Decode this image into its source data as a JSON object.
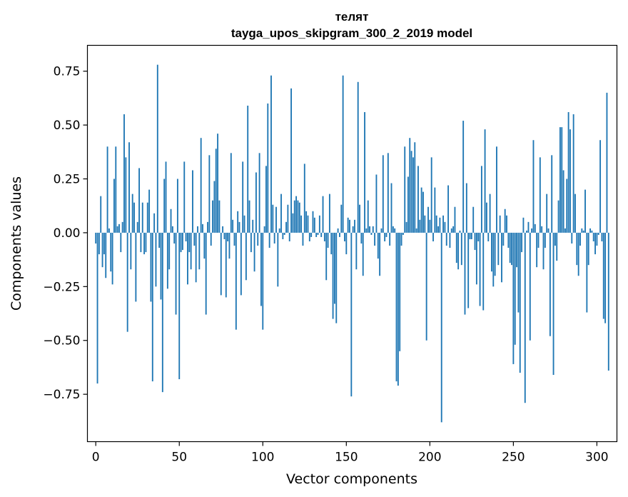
{
  "chart_data": {
    "type": "bar",
    "title": "телят",
    "subtitle": "tayga_upos_skipgram_300_2_2019 model",
    "xlabel": "Vector components",
    "ylabel": "Components values",
    "xlim": [
      -5,
      312
    ],
    "ylim": [
      -0.97,
      0.87
    ],
    "xticks": [
      0,
      50,
      100,
      150,
      200,
      250,
      300
    ],
    "yticks": [
      -0.75,
      -0.5,
      -0.25,
      0.0,
      0.25,
      0.5,
      0.75
    ],
    "ytick_labels": [
      "−0.75",
      "−0.50",
      "−0.25",
      "0.00",
      "0.25",
      "0.50",
      "0.75"
    ],
    "bar_color": "#1f77b4",
    "grid": false,
    "values": [
      -0.05,
      -0.7,
      -0.1,
      0.17,
      -0.16,
      -0.1,
      -0.21,
      0.4,
      0.02,
      -0.18,
      -0.24,
      0.25,
      0.4,
      0.03,
      0.04,
      -0.09,
      0.05,
      0.55,
      0.35,
      -0.46,
      0.42,
      -0.17,
      0.18,
      0.14,
      -0.32,
      0.05,
      0.3,
      -0.09,
      0.14,
      -0.1,
      -0.09,
      0.14,
      0.2,
      -0.32,
      -0.69,
      0.09,
      -0.25,
      0.78,
      -0.07,
      -0.31,
      -0.74,
      0.25,
      0.33,
      -0.26,
      -0.17,
      0.11,
      0.03,
      -0.05,
      -0.38,
      0.25,
      -0.68,
      -0.09,
      -0.08,
      0.33,
      -0.04,
      -0.24,
      -0.09,
      -0.17,
      0.29,
      -0.06,
      -0.23,
      0.03,
      -0.17,
      0.44,
      0.04,
      -0.12,
      -0.38,
      0.05,
      0.36,
      -0.06,
      0.15,
      0.24,
      0.39,
      0.46,
      0.15,
      -0.29,
      0.03,
      -0.03,
      -0.3,
      -0.04,
      -0.12,
      0.37,
      0.06,
      -0.06,
      -0.45,
      0.1,
      0.05,
      -0.29,
      0.33,
      0.08,
      -0.22,
      0.59,
      0.15,
      -0.09,
      0.06,
      -0.18,
      0.28,
      -0.06,
      0.37,
      -0.34,
      -0.45,
      0.03,
      0.31,
      0.6,
      -0.07,
      0.73,
      0.13,
      -0.05,
      0.12,
      -0.25,
      0.02,
      0.18,
      -0.03,
      -0.01,
      0.05,
      0.13,
      -0.04,
      0.67,
      0.09,
      0.15,
      0.17,
      0.15,
      0.14,
      0.08,
      -0.06,
      0.32,
      0.1,
      0.08,
      -0.04,
      -0.02,
      0.1,
      0.07,
      -0.02,
      -0.01,
      0.08,
      -0.02,
      0.17,
      -0.04,
      -0.22,
      -0.07,
      0.18,
      -0.1,
      -0.4,
      -0.33,
      -0.42,
      0.02,
      -0.02,
      0.13,
      0.73,
      -0.04,
      -0.1,
      0.07,
      0.06,
      -0.76,
      0.03,
      0.06,
      -0.17,
      0.7,
      0.13,
      -0.05,
      -0.2,
      0.56,
      0.02,
      0.15,
      0.03,
      -0.01,
      0.03,
      -0.06,
      0.27,
      -0.12,
      -0.2,
      0.02,
      0.36,
      -0.04,
      -0.02,
      0.37,
      -0.06,
      0.23,
      0.03,
      0.02,
      -0.69,
      -0.71,
      -0.55,
      -0.06,
      -0.01,
      0.4,
      0.05,
      0.26,
      0.44,
      0.38,
      0.35,
      0.42,
      0.02,
      0.31,
      0.06,
      0.21,
      0.19,
      0.08,
      -0.5,
      0.12,
      0.06,
      0.35,
      -0.04,
      0.21,
      0.08,
      0.03,
      0.07,
      -0.88,
      0.08,
      0.05,
      -0.06,
      0.22,
      -0.07,
      0.02,
      0.03,
      0.12,
      -0.14,
      -0.17,
      0.01,
      -0.15,
      0.52,
      -0.38,
      0.23,
      -0.35,
      -0.03,
      -0.03,
      0.12,
      -0.08,
      -0.24,
      -0.04,
      -0.34,
      0.31,
      -0.36,
      0.48,
      0.14,
      -0.04,
      0.18,
      -0.18,
      -0.25,
      -0.2,
      0.4,
      -0.15,
      0.08,
      -0.23,
      -0.06,
      0.11,
      0.08,
      -0.07,
      -0.14,
      -0.15,
      -0.61,
      -0.52,
      -0.16,
      -0.37,
      -0.65,
      -0.09,
      0.07,
      -0.79,
      0.01,
      0.05,
      -0.5,
      0.02,
      0.43,
      0.04,
      -0.16,
      -0.07,
      0.35,
      0.03,
      -0.17,
      -0.07,
      0.18,
      0.02,
      -0.48,
      0.36,
      -0.66,
      -0.06,
      -0.13,
      0.15,
      0.49,
      0.49,
      0.29,
      0.02,
      0.25,
      0.56,
      0.48,
      -0.05,
      0.55,
      0.18,
      -0.15,
      -0.2,
      -0.06,
      0.02,
      0.01,
      0.2,
      -0.37,
      -0.15,
      0.02,
      0.01,
      -0.04,
      -0.1,
      -0.06,
      -0.01,
      0.43,
      -0.04,
      -0.4,
      -0.42,
      0.65,
      -0.64
    ]
  }
}
